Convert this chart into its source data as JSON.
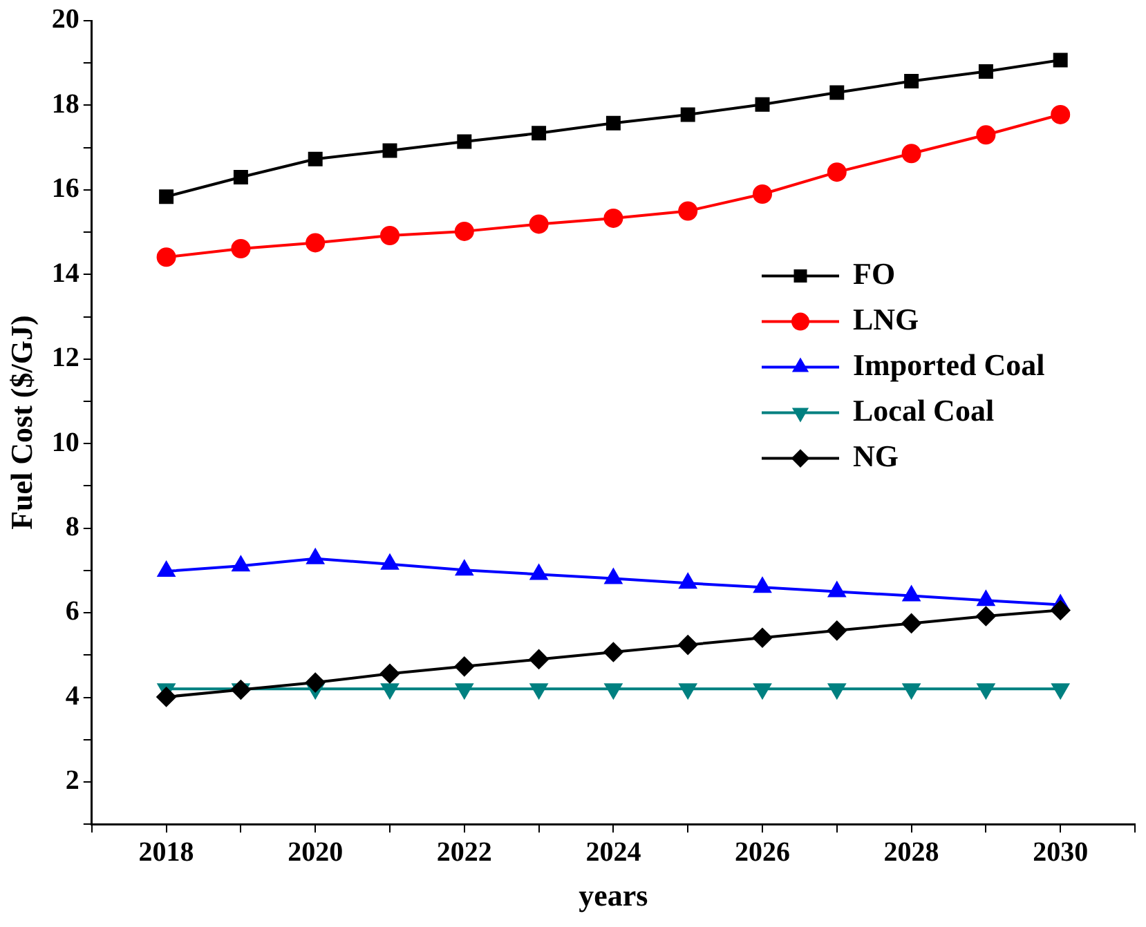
{
  "chart_data": {
    "type": "line",
    "xlabel": "years",
    "ylabel": "Fuel Cost ($/GJ)",
    "x": [
      2018,
      2019,
      2020,
      2021,
      2022,
      2023,
      2024,
      2025,
      2026,
      2027,
      2028,
      2029,
      2030
    ],
    "xlim": [
      2017,
      2031
    ],
    "xticks": [
      {
        "value": 2017,
        "label": null
      },
      2018,
      {
        "value": 2019,
        "label": null
      },
      2020,
      {
        "value": 2021,
        "label": null
      },
      2022,
      {
        "value": 2023,
        "label": null
      },
      2024,
      {
        "value": 2025,
        "label": null
      },
      2026,
      {
        "value": 2027,
        "label": null
      },
      2028,
      {
        "value": 2029,
        "label": null
      },
      2030,
      {
        "value": 2031,
        "label": null
      }
    ],
    "ylim": [
      1,
      20
    ],
    "yticks": [
      {
        "value": 1,
        "label": null
      },
      2,
      {
        "value": 3,
        "label": null
      },
      4,
      {
        "value": 5,
        "label": null
      },
      6,
      {
        "value": 7,
        "label": null
      },
      8,
      {
        "value": 9,
        "label": null
      },
      10,
      {
        "value": 11,
        "label": null
      },
      12,
      {
        "value": 13,
        "label": null
      },
      14,
      {
        "value": 15,
        "label": null
      },
      16,
      {
        "value": 17,
        "label": null
      },
      18,
      {
        "value": 19,
        "label": null
      },
      20
    ],
    "grid": false,
    "legend": "right",
    "line_style": "solid",
    "series": [
      {
        "name": "FO",
        "color": "#000000",
        "marker": "square",
        "values": [
          15.84,
          16.3,
          16.73,
          16.93,
          17.14,
          17.34,
          17.58,
          17.78,
          18.02,
          18.3,
          18.57,
          18.8,
          19.07
        ]
      },
      {
        "name": "LNG",
        "color": "#ff0000",
        "marker": "circle",
        "values": [
          14.41,
          14.61,
          14.75,
          14.92,
          15.02,
          15.19,
          15.33,
          15.5,
          15.9,
          16.42,
          16.86,
          17.3,
          17.78
        ]
      },
      {
        "name": "Imported Coal",
        "color": "#0000ff",
        "marker": "triangle",
        "values": [
          6.98,
          7.11,
          7.28,
          7.15,
          7.01,
          6.91,
          6.81,
          6.7,
          6.6,
          6.5,
          6.4,
          6.29,
          6.19
        ]
      },
      {
        "name": "Local Coal",
        "color": "#008080",
        "marker": "triangle-down",
        "values": [
          4.2,
          4.2,
          4.2,
          4.2,
          4.2,
          4.2,
          4.2,
          4.2,
          4.2,
          4.2,
          4.2,
          4.2,
          4.2
        ]
      },
      {
        "name": "NG",
        "color": "#000000",
        "marker": "diamond",
        "values": [
          4.01,
          4.18,
          4.35,
          4.56,
          4.73,
          4.9,
          5.07,
          5.24,
          5.41,
          5.58,
          5.75,
          5.92,
          6.06
        ]
      }
    ]
  }
}
